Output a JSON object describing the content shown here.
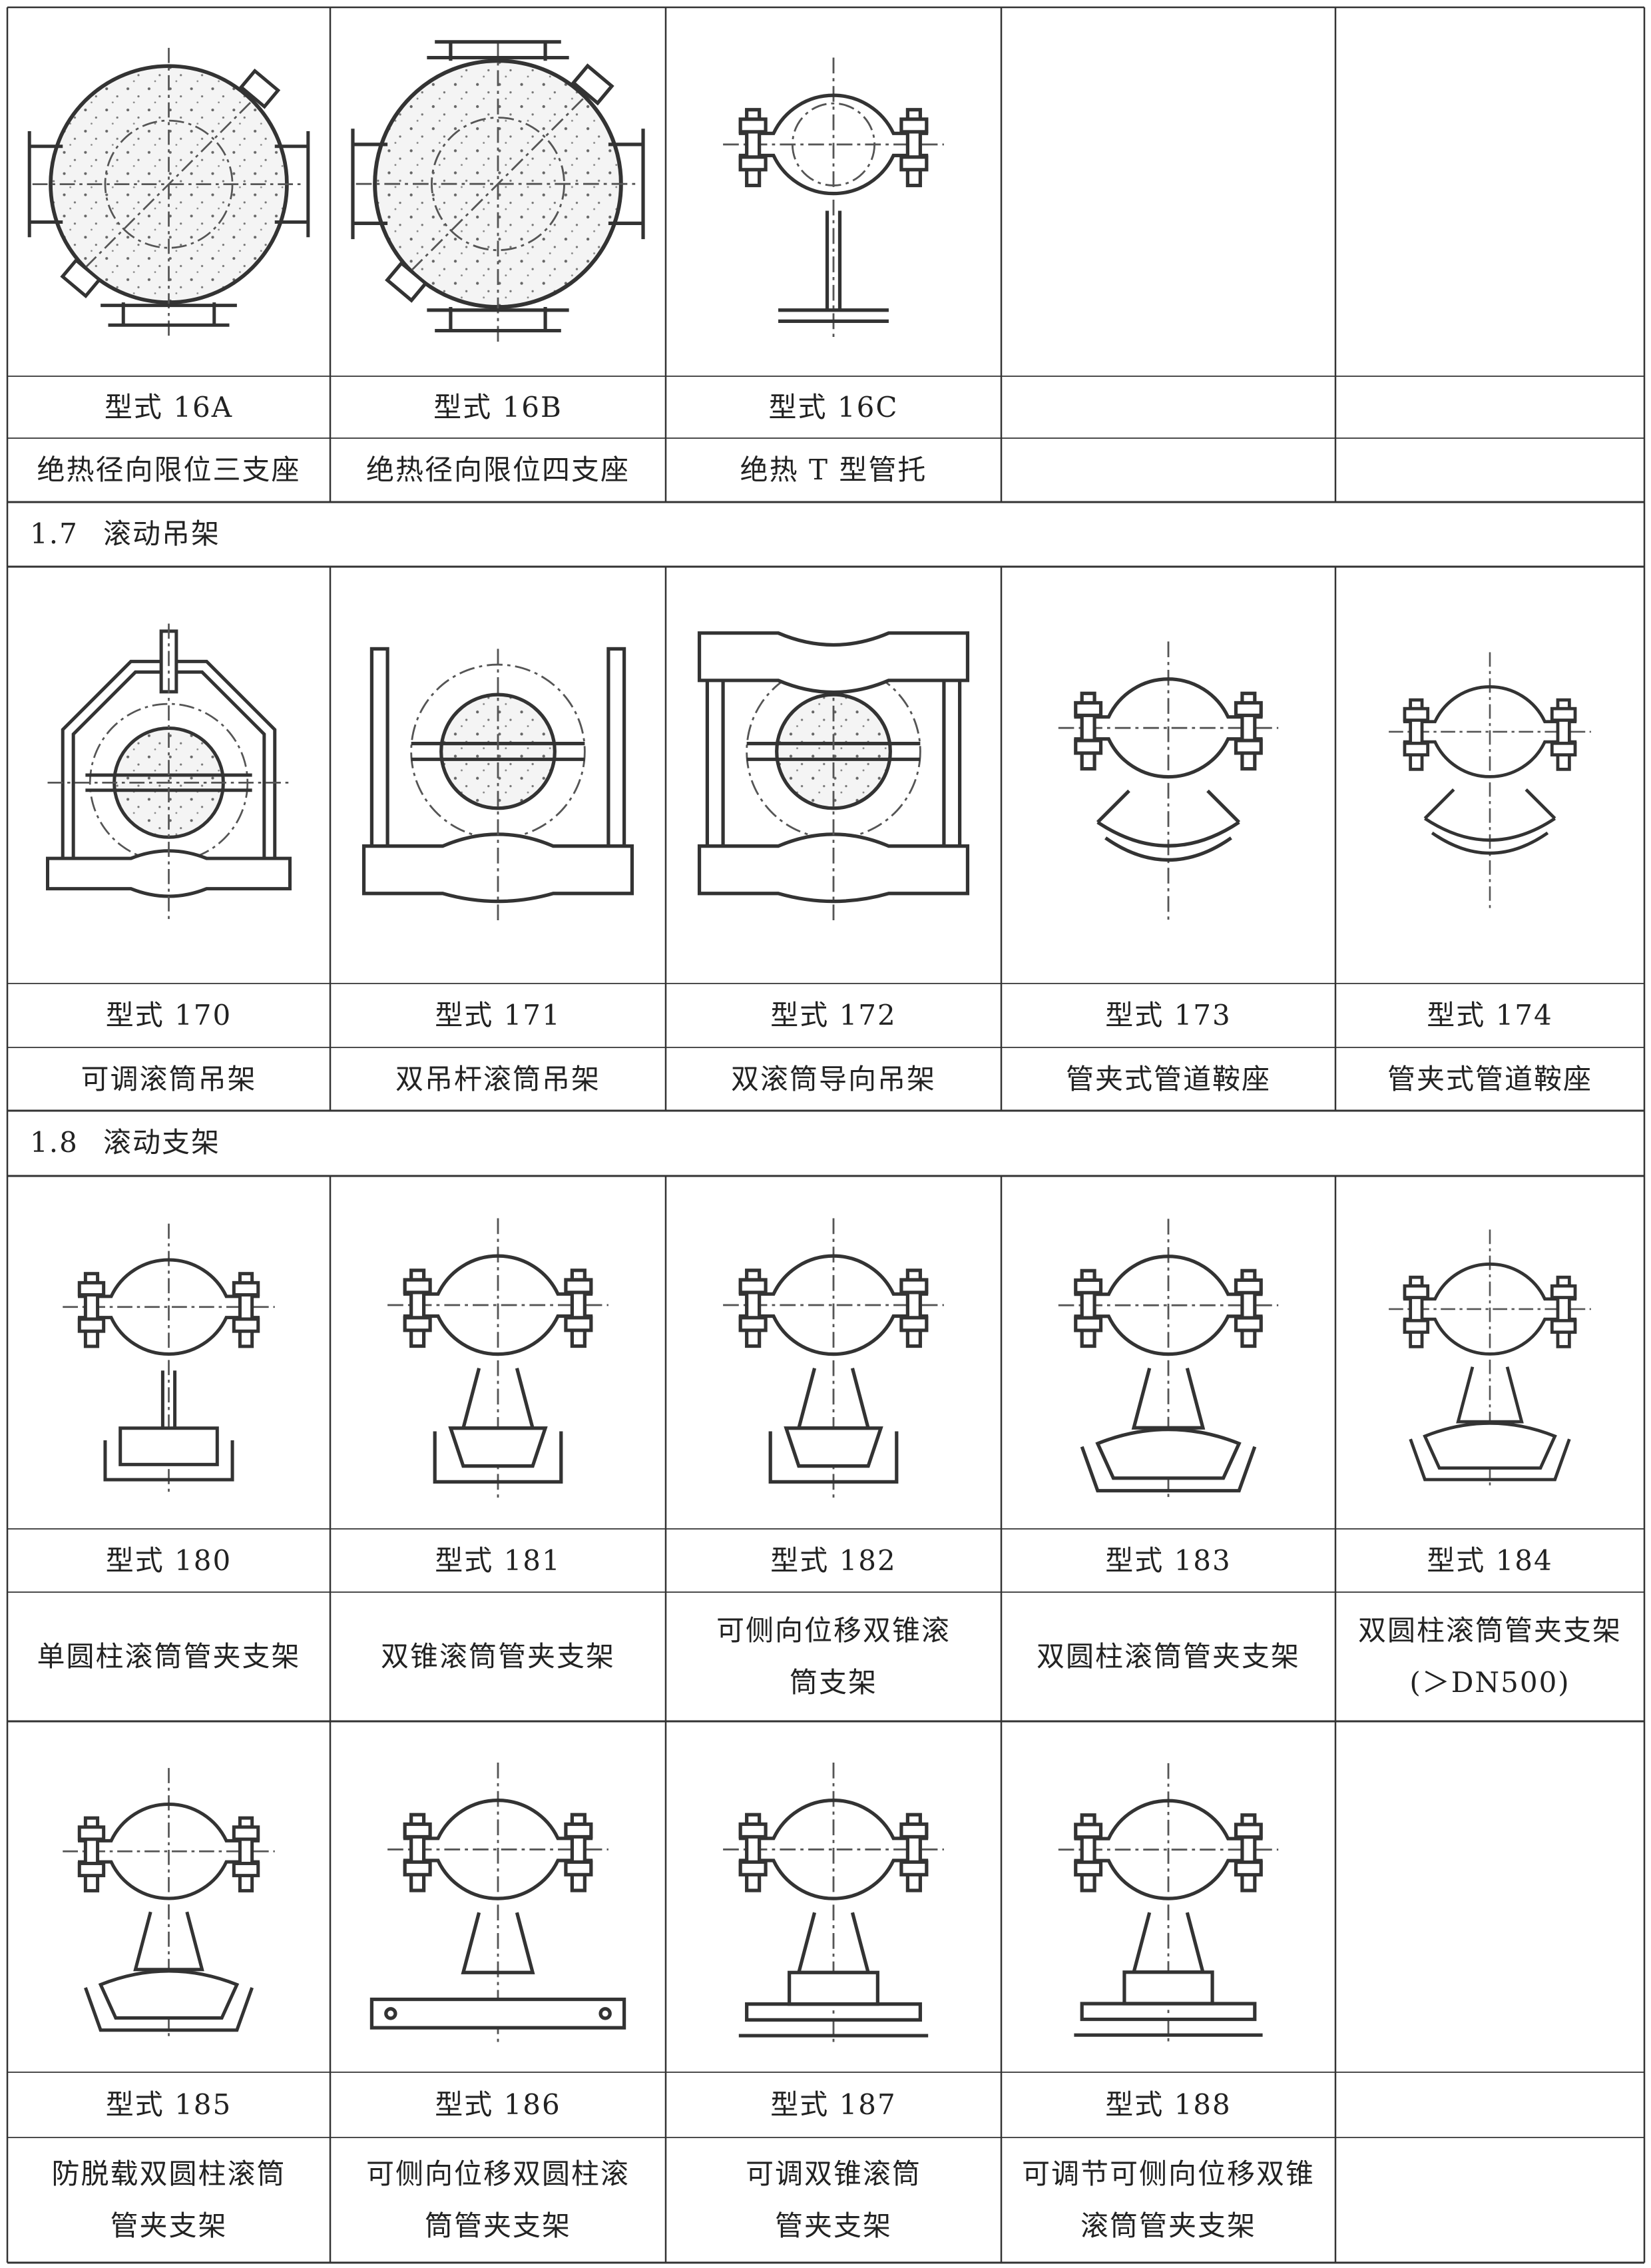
{
  "blocks": [
    {
      "items": [
        {
          "model": "型式 16A",
          "name": [
            "绝热径向限位三支座"
          ]
        },
        {
          "model": "型式 16B",
          "name": [
            "绝热径向限位四支座"
          ]
        },
        {
          "model": "型式 16C",
          "name": [
            "绝热 T 型管托"
          ]
        }
      ]
    },
    {
      "items": [
        {
          "model": "型式 170",
          "name": [
            "可调滚筒吊架"
          ]
        },
        {
          "model": "型式 171",
          "name": [
            "双吊杆滚筒吊架"
          ]
        },
        {
          "model": "型式 172",
          "name": [
            "双滚筒导向吊架"
          ]
        },
        {
          "model": "型式 173",
          "name": [
            "管夹式管道鞍座"
          ]
        },
        {
          "model": "型式 174",
          "name": [
            "管夹式管道鞍座"
          ]
        }
      ]
    },
    {
      "items": [
        {
          "model": "型式 180",
          "name": [
            "单圆柱滚筒管夹支架"
          ]
        },
        {
          "model": "型式 181",
          "name": [
            "双锥滚筒管夹支架"
          ]
        },
        {
          "model": "型式 182",
          "name": [
            "可侧向位移双锥滚",
            "筒支架"
          ]
        },
        {
          "model": "型式 183",
          "name": [
            "双圆柱滚筒管夹支架"
          ]
        },
        {
          "model": "型式 184",
          "name": [
            "双圆柱滚筒管夹支架",
            "(＞DN500)"
          ]
        }
      ]
    },
    {
      "items": [
        {
          "model": "型式 185",
          "name": [
            "防脱载双圆柱滚筒",
            "管夹支架"
          ]
        },
        {
          "model": "型式 186",
          "name": [
            "可侧向位移双圆柱滚",
            "筒管夹支架"
          ]
        },
        {
          "model": "型式 187",
          "name": [
            "可调双锥滚筒",
            "管夹支架"
          ]
        },
        {
          "model": "型式 188",
          "name": [
            "可调节可侧向位移双锥",
            "滚筒管夹支架"
          ]
        }
      ]
    }
  ],
  "sections": [
    {
      "number": "1.7",
      "title": "滚动吊架"
    },
    {
      "number": "1.8",
      "title": "滚动支架"
    }
  ]
}
